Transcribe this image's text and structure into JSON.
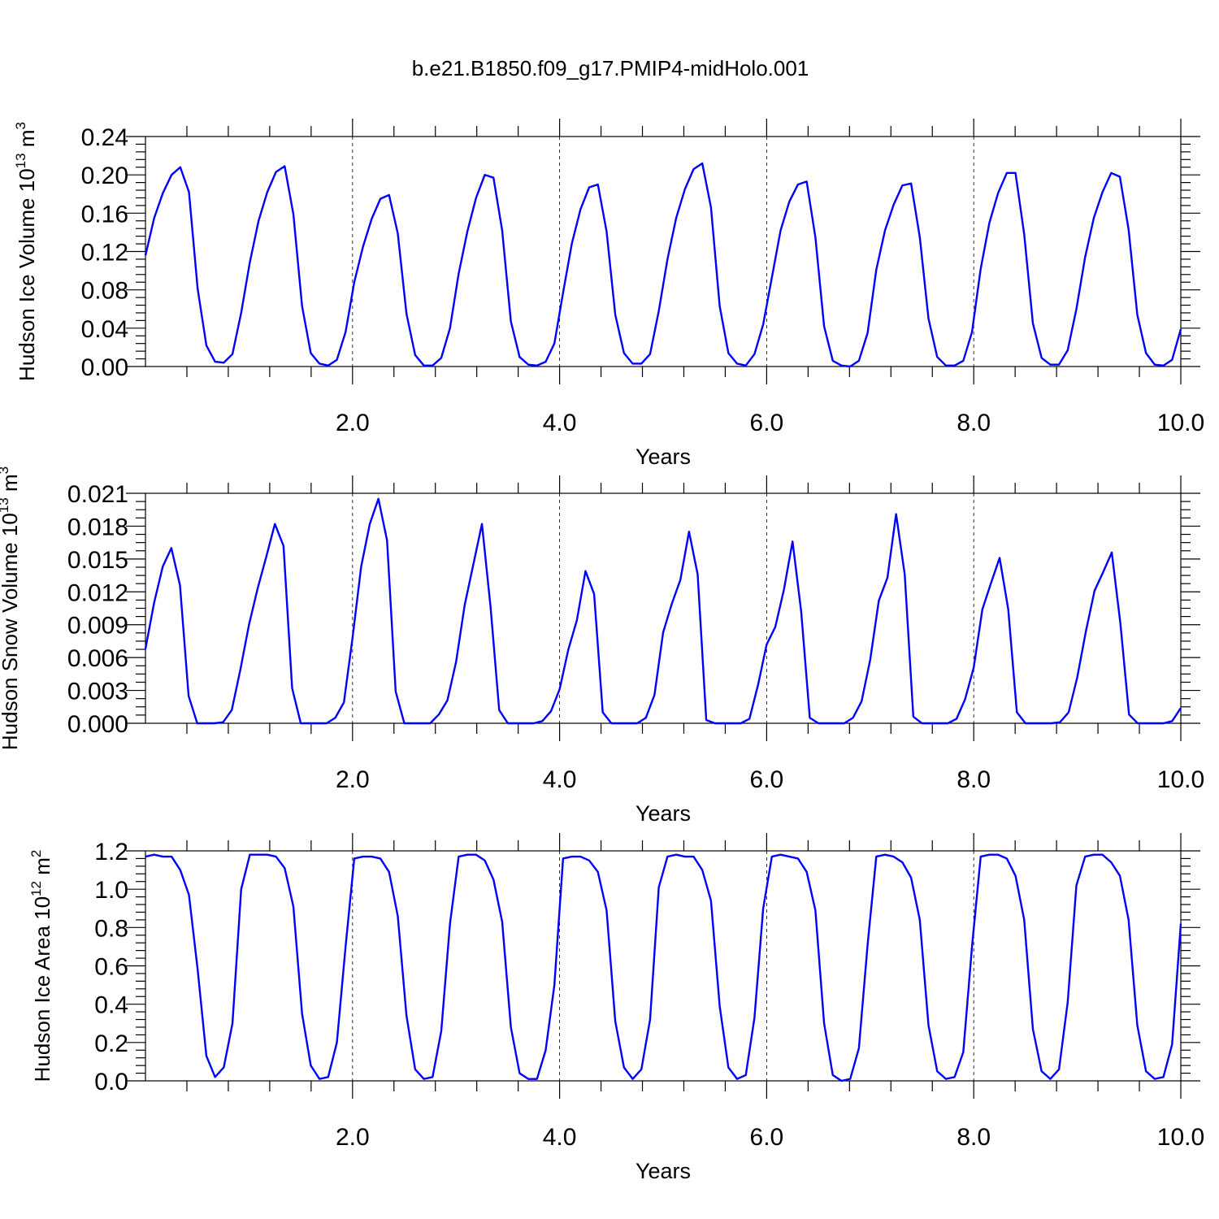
{
  "figure": {
    "title": "b.e21.B1850.f09_g17.PMIP4-midHolo.001"
  },
  "style": {
    "line_color": "#0000ff",
    "axis_color": "#000000",
    "grid_color": "#000000"
  },
  "chart_data": [
    {
      "type": "line",
      "ylabel": "Hudson Ice Volume 10",
      "ylabel_exp": "13",
      "ylabel_unit": " m",
      "ylabel_unit_exp": "3",
      "xlabel": "Years",
      "xlim": [
        0,
        10
      ],
      "ylim": [
        0,
        0.24
      ],
      "xticks": [
        "2.0",
        "4.0",
        "6.0",
        "8.0",
        "10.0"
      ],
      "yticks": [
        "0.00",
        "0.04",
        "0.08",
        "0.12",
        "0.16",
        "0.20",
        "0.24"
      ],
      "grid_x": "dashed at 2,4,6,8",
      "series": [
        {
          "values": [
            0.116,
            0.155,
            0.181,
            0.2,
            0.208,
            0.182,
            0.081,
            0.022,
            0.005,
            0.004,
            0.013,
            0.056,
            0.109,
            0.152,
            0.182,
            0.203,
            0.209,
            0.159,
            0.063,
            0.014,
            0.003,
            0.001,
            0.007,
            0.036,
            0.088,
            0.125,
            0.154,
            0.175,
            0.179,
            0.139,
            0.055,
            0.012,
            0.001,
            0.001,
            0.009,
            0.04,
            0.097,
            0.141,
            0.176,
            0.2,
            0.197,
            0.142,
            0.047,
            0.01,
            0.002,
            0.001,
            0.005,
            0.024,
            0.077,
            0.128,
            0.164,
            0.187,
            0.19,
            0.141,
            0.054,
            0.014,
            0.003,
            0.003,
            0.013,
            0.058,
            0.112,
            0.155,
            0.185,
            0.206,
            0.212,
            0.166,
            0.063,
            0.014,
            0.003,
            0.001,
            0.013,
            0.044,
            0.093,
            0.142,
            0.172,
            0.19,
            0.193,
            0.135,
            0.042,
            0.006,
            0.001,
            0.0,
            0.006,
            0.035,
            0.101,
            0.142,
            0.169,
            0.189,
            0.191,
            0.135,
            0.05,
            0.01,
            0.001,
            0.001,
            0.006,
            0.036,
            0.102,
            0.15,
            0.181,
            0.202,
            0.202,
            0.138,
            0.045,
            0.009,
            0.002,
            0.002,
            0.017,
            0.06,
            0.114,
            0.155,
            0.182,
            0.202,
            0.198,
            0.143,
            0.054,
            0.014,
            0.002,
            0.001,
            0.007,
            0.039
          ]
        }
      ]
    },
    {
      "type": "line",
      "ylabel": "Hudson Snow Volume 10",
      "ylabel_exp": "13",
      "ylabel_unit": " m",
      "ylabel_unit_exp": "3",
      "xlabel": "Years",
      "xlim": [
        0,
        10
      ],
      "ylim": [
        0,
        0.021
      ],
      "xticks": [
        "2.0",
        "4.0",
        "6.0",
        "8.0",
        "10.0"
      ],
      "yticks": [
        "0.000",
        "0.003",
        "0.006",
        "0.009",
        "0.012",
        "0.015",
        "0.018",
        "0.021"
      ],
      "grid_x": "dashed at 2,4,6,8",
      "series": [
        {
          "values": [
            0.0068,
            0.011,
            0.0143,
            0.016,
            0.0126,
            0.0025,
            0.0,
            0.0,
            0.0,
            0.0001,
            0.0012,
            0.0049,
            0.009,
            0.0123,
            0.0152,
            0.0182,
            0.0162,
            0.0032,
            0.0,
            0.0,
            0.0,
            0.0,
            0.0005,
            0.0019,
            0.0078,
            0.0143,
            0.0182,
            0.0205,
            0.0167,
            0.0029,
            0.0,
            0.0,
            0.0,
            0.0,
            0.0008,
            0.0021,
            0.0056,
            0.0108,
            0.0145,
            0.0182,
            0.0106,
            0.0012,
            0.0,
            0.0,
            0.0,
            0.0,
            0.0002,
            0.0011,
            0.0031,
            0.0067,
            0.0094,
            0.0139,
            0.0118,
            0.001,
            0.0,
            0.0,
            0.0,
            0.0,
            0.0005,
            0.0026,
            0.0083,
            0.0109,
            0.0131,
            0.0175,
            0.0136,
            0.0003,
            0.0,
            0.0,
            0.0,
            0.0,
            0.0004,
            0.0035,
            0.0072,
            0.0088,
            0.0122,
            0.0166,
            0.0102,
            0.0005,
            0.0,
            0.0,
            0.0,
            0.0,
            0.0005,
            0.002,
            0.0058,
            0.0112,
            0.0133,
            0.0191,
            0.0136,
            0.0006,
            0.0,
            0.0,
            0.0,
            0.0,
            0.0004,
            0.0022,
            0.0051,
            0.0104,
            0.0128,
            0.0151,
            0.0104,
            0.001,
            0.0,
            0.0,
            0.0,
            0.0,
            0.0001,
            0.001,
            0.0042,
            0.0084,
            0.0121,
            0.0138,
            0.0156,
            0.0091,
            0.0008,
            0.0,
            0.0,
            0.0,
            0.0,
            0.0002,
            0.0014
          ]
        }
      ]
    },
    {
      "type": "line",
      "ylabel": "Hudson Ice Area 10",
      "ylabel_exp": "12",
      "ylabel_unit": " m",
      "ylabel_unit_exp": "2",
      "xlabel": "Years",
      "xlim": [
        0,
        10
      ],
      "ylim": [
        0,
        1.2
      ],
      "xticks": [
        "2.0",
        "4.0",
        "6.0",
        "8.0",
        "10.0"
      ],
      "yticks": [
        "0.0",
        "0.2",
        "0.4",
        "0.6",
        "0.8",
        "1.0",
        "1.2"
      ],
      "grid_x": "dashed at 2,4,6,8",
      "series": [
        {
          "values": [
            1.17,
            1.18,
            1.17,
            1.17,
            1.1,
            0.97,
            0.58,
            0.13,
            0.02,
            0.07,
            0.3,
            1.0,
            1.18,
            1.18,
            1.18,
            1.17,
            1.11,
            0.91,
            0.35,
            0.08,
            0.01,
            0.02,
            0.2,
            0.7,
            1.16,
            1.17,
            1.17,
            1.16,
            1.09,
            0.86,
            0.34,
            0.06,
            0.01,
            0.02,
            0.26,
            0.82,
            1.17,
            1.18,
            1.18,
            1.15,
            1.05,
            0.83,
            0.28,
            0.04,
            0.01,
            0.01,
            0.16,
            0.5,
            1.16,
            1.17,
            1.17,
            1.15,
            1.09,
            0.89,
            0.31,
            0.07,
            0.01,
            0.06,
            0.32,
            1.01,
            1.17,
            1.18,
            1.17,
            1.17,
            1.1,
            0.94,
            0.39,
            0.07,
            0.01,
            0.03,
            0.33,
            0.9,
            1.17,
            1.18,
            1.17,
            1.16,
            1.09,
            0.89,
            0.3,
            0.03,
            0.0,
            0.01,
            0.17,
            0.71,
            1.17,
            1.18,
            1.17,
            1.14,
            1.06,
            0.84,
            0.29,
            0.05,
            0.01,
            0.02,
            0.15,
            0.7,
            1.17,
            1.18,
            1.18,
            1.16,
            1.07,
            0.84,
            0.27,
            0.05,
            0.01,
            0.06,
            0.41,
            1.02,
            1.17,
            1.18,
            1.18,
            1.14,
            1.07,
            0.84,
            0.29,
            0.05,
            0.01,
            0.02,
            0.19,
            0.82
          ]
        }
      ]
    }
  ]
}
